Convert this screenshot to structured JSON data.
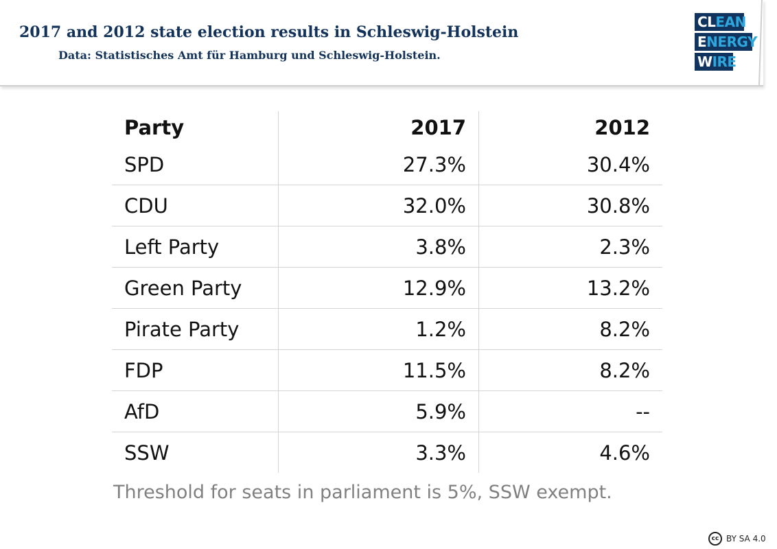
{
  "header": {
    "title": "2017 and 2012 state election results in Schleswig-Holstein",
    "subtitle": "Data: Statistisches Amt für Hamburg und Schleswig-Holstein.",
    "logo": {
      "line1_white": "CL",
      "line1_blue": "EAN",
      "line2_white": "E",
      "line2_blue": "NERGY",
      "line3_white": "W",
      "line3_blue": "IRE"
    }
  },
  "chart_data": {
    "type": "table",
    "columns": [
      "Party",
      "2017",
      "2012"
    ],
    "rows": [
      [
        "SPD",
        "27.3%",
        "30.4%"
      ],
      [
        "CDU",
        "32.0%",
        "30.8%"
      ],
      [
        "Left Party",
        "3.8%",
        "2.3%"
      ],
      [
        "Green Party",
        "12.9%",
        "13.2%"
      ],
      [
        "Pirate Party",
        "1.2%",
        "8.2%"
      ],
      [
        "FDP",
        "11.5%",
        "8.2%"
      ],
      [
        "AfD",
        "5.9%",
        "--"
      ],
      [
        "SSW",
        "3.3%",
        "4.6%"
      ]
    ]
  },
  "footer": {
    "note": "Threshold for seats in parliament is 5%, SSW exempt.",
    "license_icon": "cc",
    "license_text": "BY SA 4.0"
  },
  "colors": {
    "brand_navy": "#10345e",
    "brand_blue": "#2fa6dc",
    "title": "#12325a",
    "note_gray": "#808080"
  }
}
